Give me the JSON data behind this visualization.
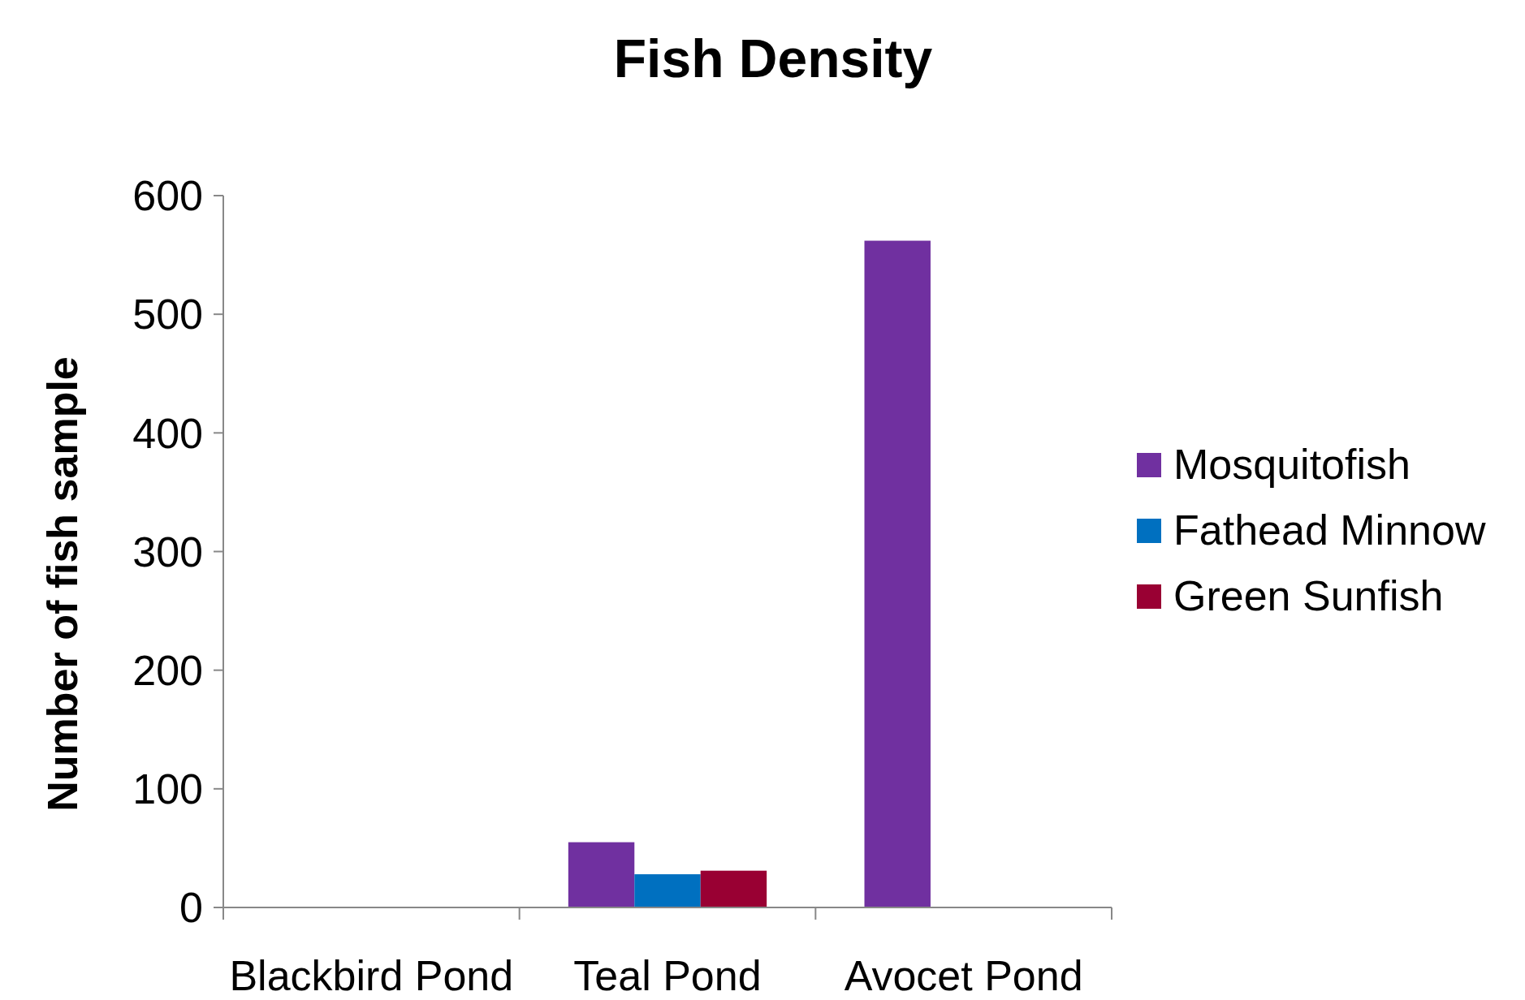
{
  "chart_data": {
    "type": "bar",
    "title": "Fish Density",
    "ylabel": "Number of fish sample",
    "categories": [
      "Blackbird Pond",
      "Teal Pond",
      "Avocet Pond"
    ],
    "series": [
      {
        "name": "Mosquitofish",
        "color": "#7030a0",
        "values": [
          0,
          55,
          562
        ]
      },
      {
        "name": "Fathead Minnow",
        "color": "#0070c0",
        "values": [
          0,
          28,
          0
        ]
      },
      {
        "name": "Green Sunfish",
        "color": "#990033",
        "values": [
          0,
          31,
          0
        ]
      }
    ],
    "ylim": [
      0,
      600
    ],
    "yticks": [
      0,
      100,
      200,
      300,
      400,
      500,
      600
    ],
    "legend": "right",
    "grid": false
  }
}
